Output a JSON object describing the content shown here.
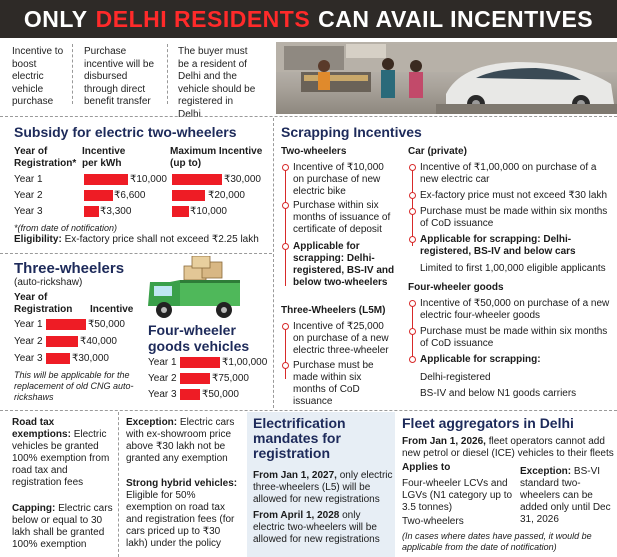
{
  "title": {
    "part1": "ONLY",
    "part2": "DELHI RESIDENTS",
    "part3": "CAN AVAIL INCENTIVES"
  },
  "intro": [
    "Incentive to boost electric vehicle purchase",
    "Purchase incentive will be disbursed through direct benefit transfer",
    "The buyer must be a resident of Delhi and the vehicle should be registered in Delhi"
  ],
  "two_wheelers": {
    "heading": "Subsidy for electric two-wheelers",
    "col1": "Year of Registration*",
    "col2": "Incentive per kWh",
    "col3": "Maximum Incentive (up to)",
    "rows": [
      {
        "year": "Year 1",
        "per_kwh": "₹10,000",
        "max": "₹30,000"
      },
      {
        "year": "Year 2",
        "per_kwh": "₹6,600",
        "max": "₹20,000"
      },
      {
        "year": "Year 3",
        "per_kwh": "₹3,300",
        "max": "₹10,000"
      }
    ],
    "footnote": "*(from date of notification)",
    "eligibility_label": "Eligibility:",
    "eligibility_text": "Ex-factory price shall not exceed ₹2.25 lakh"
  },
  "three_wheelers": {
    "heading": "Three-wheelers",
    "sub": "(auto-rickshaw)",
    "col1": "Year of Registration",
    "col2": "Incentive",
    "rows": [
      {
        "year": "Year 1",
        "value": "₹50,000"
      },
      {
        "year": "Year 2",
        "value": "₹40,000"
      },
      {
        "year": "Year 3",
        "value": "₹30,000"
      }
    ],
    "note": "This will be applicable for the replacement of old CNG auto-rickshaws"
  },
  "four_wheeler_goods": {
    "heading": "Four-wheeler goods vehicles",
    "rows": [
      {
        "year": "Year 1",
        "value": "₹1,00,000"
      },
      {
        "year": "Year 2",
        "value": "₹75,000"
      },
      {
        "year": "Year 3",
        "value": "₹50,000"
      }
    ]
  },
  "scrapping": {
    "heading": "Scrapping Incentives",
    "two_wheelers": {
      "heading": "Two-wheelers",
      "items": [
        "Incentive of ₹10,000 on purchase of new electric bike",
        "Purchase within six months of issuance of certificate of deposit",
        "Applicable for scrapping: Delhi-registered, BS-IV and below two-wheelers"
      ]
    },
    "three_wheelers": {
      "heading": "Three-Wheelers (L5M)",
      "items": [
        "Incentive of ₹25,000 on purchase of a new electric three-wheeler",
        "Purchase must be made within six months of CoD issuance"
      ]
    },
    "car": {
      "heading": "Car (private)",
      "items": [
        "Incentive of ₹1,00,000 on purchase of a new electric car",
        "Ex-factory price must not exceed ₹30 lakh",
        "Purchase must be made within six months of CoD issuance",
        "Applicable for scrapping: Delhi-registered, BS-IV and below cars"
      ],
      "limit": "Limited to first 1,00,000 eligible applicants"
    },
    "four_wheeler_goods": {
      "heading": "Four-wheeler goods",
      "items": [
        "Incentive of ₹50,000 on purchase of a new electric four-wheeler goods",
        "Purchase must be made within six months of CoD issuance",
        "Applicable for scrapping:"
      ],
      "extra": [
        "Delhi-registered",
        "BS-IV and below N1 goods carriers"
      ]
    }
  },
  "road_tax": {
    "exemptions_label": "Road tax exemptions:",
    "exemptions_text": "Electric vehicles be granted 100% exemption from road tax and registration fees",
    "capping_label": "Capping:",
    "capping_text": "Electric cars below or equal to 30 lakh shall be granted 100% exemption",
    "exception_label": "Exception:",
    "exception_text": "Electric cars with ex-showroom price above ₹30 lakh not be granted any exemption",
    "hybrid_label": "Strong hybrid vehicles:",
    "hybrid_text": "Eligible for 50% exemption on road tax and registration fees (for cars priced up to ₹30 lakh) under the policy"
  },
  "electrification": {
    "heading": "Electrification mandates for registration",
    "p1_date": "From Jan 1, 2027,",
    "p1_text": "only electric three-wheelers (L5) will be allowed for new registrations",
    "p2_date": "From April 1, 2028",
    "p2_text": "only electric two-wheelers will be allowed for new registrations"
  },
  "fleet": {
    "heading": "Fleet aggregators in Delhi",
    "p1_date": "From Jan 1, 2026,",
    "p1_text": "fleet operators cannot add new petrol or diesel (ICE) vehicles to their fleets",
    "applies_label": "Applies to",
    "applies_items": [
      "Four-wheeler LCVs and LGVs (N1 category up to 3.5 tonnes)",
      "Two-wheelers"
    ],
    "exception_label": "Exception:",
    "exception_text": "BS-VI standard two-wheelers can be added only until Dec 31, 2026",
    "note": "(In cases where dates have passed, it would be applicable from the date of notification)"
  },
  "colors": {
    "accent_red": "#ee1c25",
    "heading_navy": "#1d2a5a",
    "title_bg": "#2e2a27",
    "mandate_bg": "#e7eef5"
  },
  "bar_levels": {
    "two_wheeler_per_kwh": [
      10000,
      6600,
      3300
    ],
    "two_wheeler_max": [
      30000,
      20000,
      10000
    ],
    "three_wheeler": [
      50000,
      40000,
      30000
    ],
    "four_wheeler_goods": [
      100000,
      75000,
      50000
    ]
  }
}
